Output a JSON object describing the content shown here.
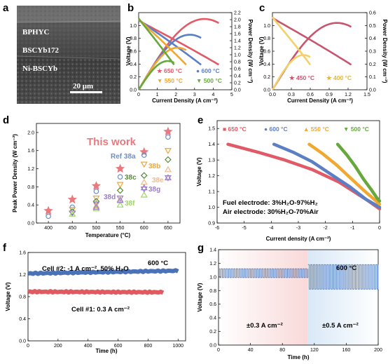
{
  "panels": {
    "a": "a",
    "b": "b",
    "c": "c",
    "d": "d",
    "e": "e",
    "f": "f",
    "g": "g"
  },
  "sem": {
    "layer1": "BPHYC",
    "layer2": "BSCYb172",
    "layer3": "Ni-BSCYb",
    "scale": "20 μm"
  },
  "colors": {
    "c650": "#e05a67",
    "c600": "#5b7fc4",
    "c550": "#f0a830",
    "c500": "#66a83c",
    "c450": "#c8556e",
    "c400": "#f2d16a",
    "ref_red": "#e8797f",
    "ref_blue": "#6e8fc9",
    "ref_orange": "#e8a83e",
    "ref_green": "#5a8a3a",
    "ref_peach": "#f3b98a",
    "ref_lime": "#9fd36c",
    "ref_purple": "#9a7fc4",
    "g_bg_left": "#f9d9d9",
    "g_bg_right": "#d9e8f7",
    "f_cell2": "#4a72b8",
    "f_cell1": "#e05a60"
  },
  "chart_data": [
    {
      "id": "b",
      "type": "line",
      "xlabel": "Current Density (A cm⁻²)",
      "ylabel": "Voltage (V)",
      "y2label": "Power Density (W cm⁻²)",
      "xlim": [
        0,
        5
      ],
      "ylim": [
        0,
        1.2
      ],
      "y2lim": [
        0,
        2.2
      ],
      "xticks": [
        "0",
        "1",
        "2",
        "3",
        "4",
        "5"
      ],
      "yticks": [
        "0.0",
        "0.2",
        "0.4",
        "0.6",
        "0.8",
        "1.0"
      ],
      "y2ticks": [
        "0.0",
        "0.2",
        "0.4",
        "0.6",
        "0.8",
        "1.0",
        "1.2",
        "1.4",
        "1.6",
        "1.8",
        "2.0",
        "2.2"
      ],
      "legend": [
        "650 °C",
        "600 °C",
        "550 °C",
        "500 °C"
      ],
      "series": [
        {
          "name": "650 °C",
          "imax": 4.3,
          "ocv": 1.08,
          "pmax": 2.02
        },
        {
          "name": "600 °C",
          "imax": 3.35,
          "ocv": 1.09,
          "pmax": 1.57
        },
        {
          "name": "550 °C",
          "imax": 2.55,
          "ocv": 1.1,
          "pmax": 1.2
        },
        {
          "name": "500 °C",
          "imax": 1.9,
          "ocv": 1.11,
          "pmax": 0.82
        }
      ]
    },
    {
      "id": "c",
      "type": "line",
      "xlabel": "Current Density (A cm⁻²)",
      "ylabel": "Voltage (V)",
      "y2label": "Power Density (W cm⁻²)",
      "xlim": [
        0,
        1.5
      ],
      "ylim": [
        0,
        1.2
      ],
      "y2lim": [
        0,
        0.6
      ],
      "xticks": [
        "0.0",
        "0.3",
        "0.6",
        "0.9",
        "1.2",
        "1.5"
      ],
      "yticks": [
        "0.0",
        "0.2",
        "0.4",
        "0.6",
        "0.8",
        "1.0"
      ],
      "y2ticks": [
        "0.0",
        "0.1",
        "0.2",
        "0.3",
        "0.4",
        "0.5",
        "0.6"
      ],
      "legend": [
        "450 °C",
        "400 °C"
      ],
      "series": [
        {
          "name": "450 °C",
          "imax": 1.25,
          "ocv": 1.12,
          "pmax": 0.52
        },
        {
          "name": "400 °C",
          "imax": 0.6,
          "ocv": 1.13,
          "pmax": 0.27
        }
      ]
    },
    {
      "id": "d",
      "type": "scatter",
      "xlabel": "Temperature (°C)",
      "ylabel": "Peak Power Density (W cm⁻²)",
      "xlim": [
        375,
        675
      ],
      "ylim": [
        0,
        2.2
      ],
      "xticks": [
        "400",
        "450",
        "500",
        "550",
        "600",
        "650"
      ],
      "yticks": [
        "0.0",
        "0.4",
        "0.8",
        "1.2",
        "1.6",
        "2.0"
      ],
      "this_work_label": "This work",
      "series": [
        {
          "name": "This work",
          "x": [
            400,
            450,
            500,
            550,
            600,
            650
          ],
          "y": [
            0.27,
            0.52,
            0.82,
            1.2,
            1.57,
            2.02
          ]
        },
        {
          "name": "Ref 38a",
          "x": [
            400,
            450,
            500,
            550,
            600,
            650
          ],
          "y": [
            0.15,
            0.35,
            0.7,
            1.02,
            1.5,
            1.9
          ]
        },
        {
          "name": "38b",
          "x": [
            450,
            500,
            550,
            600,
            650
          ],
          "y": [
            0.3,
            0.55,
            0.85,
            1.3,
            1.6
          ]
        },
        {
          "name": "38c",
          "x": [
            450,
            500,
            550,
            600,
            650
          ],
          "y": [
            0.25,
            0.48,
            0.72,
            1.05,
            1.4
          ]
        },
        {
          "name": "38d",
          "x": [
            450,
            500,
            550,
            600,
            650
          ],
          "y": [
            0.22,
            0.42,
            0.55,
            0.75,
            1.0
          ]
        },
        {
          "name": "38e",
          "x": [
            500,
            550,
            600,
            650
          ],
          "y": [
            0.38,
            0.52,
            0.9,
            1.18
          ]
        },
        {
          "name": "38f",
          "x": [
            450,
            500,
            550,
            600
          ],
          "y": [
            0.2,
            0.32,
            0.4,
            0.62
          ]
        },
        {
          "name": "38g",
          "x": [
            500,
            550,
            600,
            650
          ],
          "y": [
            0.35,
            0.5,
            0.78,
            1.0
          ]
        }
      ],
      "labels": {
        "ref38a": "Ref 38a",
        "r38b": "38b",
        "r38c": "38c",
        "r38d": "38d",
        "r38e": "38e",
        "r38f": "38f",
        "r38g": "38g"
      }
    },
    {
      "id": "e",
      "type": "line",
      "xlabel": "Current density (A cm⁻²)",
      "ylabel": "Voltage (V)",
      "xlim": [
        -6,
        0
      ],
      "ylim": [
        0.9,
        1.55
      ],
      "xticks": [
        "-6",
        "-5",
        "-4",
        "-3",
        "-2",
        "-1",
        "0"
      ],
      "yticks": [
        "0.9",
        "1.0",
        "1.1",
        "1.2",
        "1.3",
        "1.4",
        "1.5"
      ],
      "legend": [
        "650 °C",
        "600 °C",
        "550 °C",
        "500 °C"
      ],
      "series": [
        {
          "name": "650 °C",
          "x": [
            -5.6,
            -4.5,
            -3.5,
            -2.5,
            -1.5,
            -0.5,
            0
          ],
          "y": [
            1.4,
            1.35,
            1.3,
            1.24,
            1.16,
            1.05,
            0.99
          ]
        },
        {
          "name": "600 °C",
          "x": [
            -3.9,
            -3.2,
            -2.5,
            -1.8,
            -1.1,
            -0.5,
            0
          ],
          "y": [
            1.4,
            1.35,
            1.29,
            1.21,
            1.13,
            1.05,
            1.0
          ]
        },
        {
          "name": "550 °C",
          "x": [
            -2.6,
            -2.1,
            -1.6,
            -1.1,
            -0.6,
            -0.2,
            0
          ],
          "y": [
            1.4,
            1.34,
            1.27,
            1.19,
            1.11,
            1.05,
            1.02
          ]
        },
        {
          "name": "500 °C",
          "x": [
            -1.55,
            -1.2,
            -0.9,
            -0.6,
            -0.3,
            -0.1,
            0
          ],
          "y": [
            1.4,
            1.33,
            1.26,
            1.18,
            1.11,
            1.06,
            1.04
          ]
        }
      ],
      "fuel": "Fuel electrode: 3%H₂O-97%H₂",
      "air": "Air electrode: 30%H₂O-70%Air"
    },
    {
      "id": "f",
      "type": "line",
      "xlabel": "Time (h)",
      "ylabel": "Voltage (V)",
      "xlim": [
        0,
        1050
      ],
      "ylim": [
        0,
        1.6
      ],
      "xticks": [
        "0",
        "200",
        "400",
        "600",
        "800",
        "1000"
      ],
      "yticks": [
        "0.0",
        "0.4",
        "0.8",
        "1.2",
        "1.6"
      ],
      "series": [
        {
          "name": "Cell #2: -1 A cm⁻², 50% H₂O",
          "x": [
            0,
            1000
          ],
          "y": [
            1.22,
            1.27
          ]
        },
        {
          "name": "Cell #1: 0.3 A cm⁻²",
          "x": [
            0,
            900
          ],
          "y": [
            0.89,
            0.88
          ]
        }
      ],
      "temp": "600 °C",
      "cell2": "Cell #2: -1 A cm⁻², 50% H₂O",
      "cell1": "Cell #1: 0.3 A cm⁻²"
    },
    {
      "id": "g",
      "type": "line",
      "xlabel": "Time (h)",
      "ylabel": "Voltage (V)",
      "xlim": [
        0,
        200
      ],
      "ylim": [
        0,
        1.4
      ],
      "xticks": [
        "0",
        "40",
        "80",
        "120",
        "160",
        "200"
      ],
      "yticks": [
        "0.0",
        "0.2",
        "0.4",
        "0.6",
        "0.8",
        "1.0",
        "1.2",
        "1.4"
      ],
      "series": [
        {
          "name": "±0.3 A cm⁻²",
          "x": [
            0,
            112
          ],
          "high": 1.12,
          "low": 0.99
        },
        {
          "name": "±0.5 A cm⁻²",
          "x": [
            112,
            200
          ],
          "high": 1.18,
          "low": 0.82
        }
      ],
      "temp": "600 °C",
      "left": "±0.3 A cm⁻²",
      "right": "±0.5 A cm⁻²"
    }
  ]
}
